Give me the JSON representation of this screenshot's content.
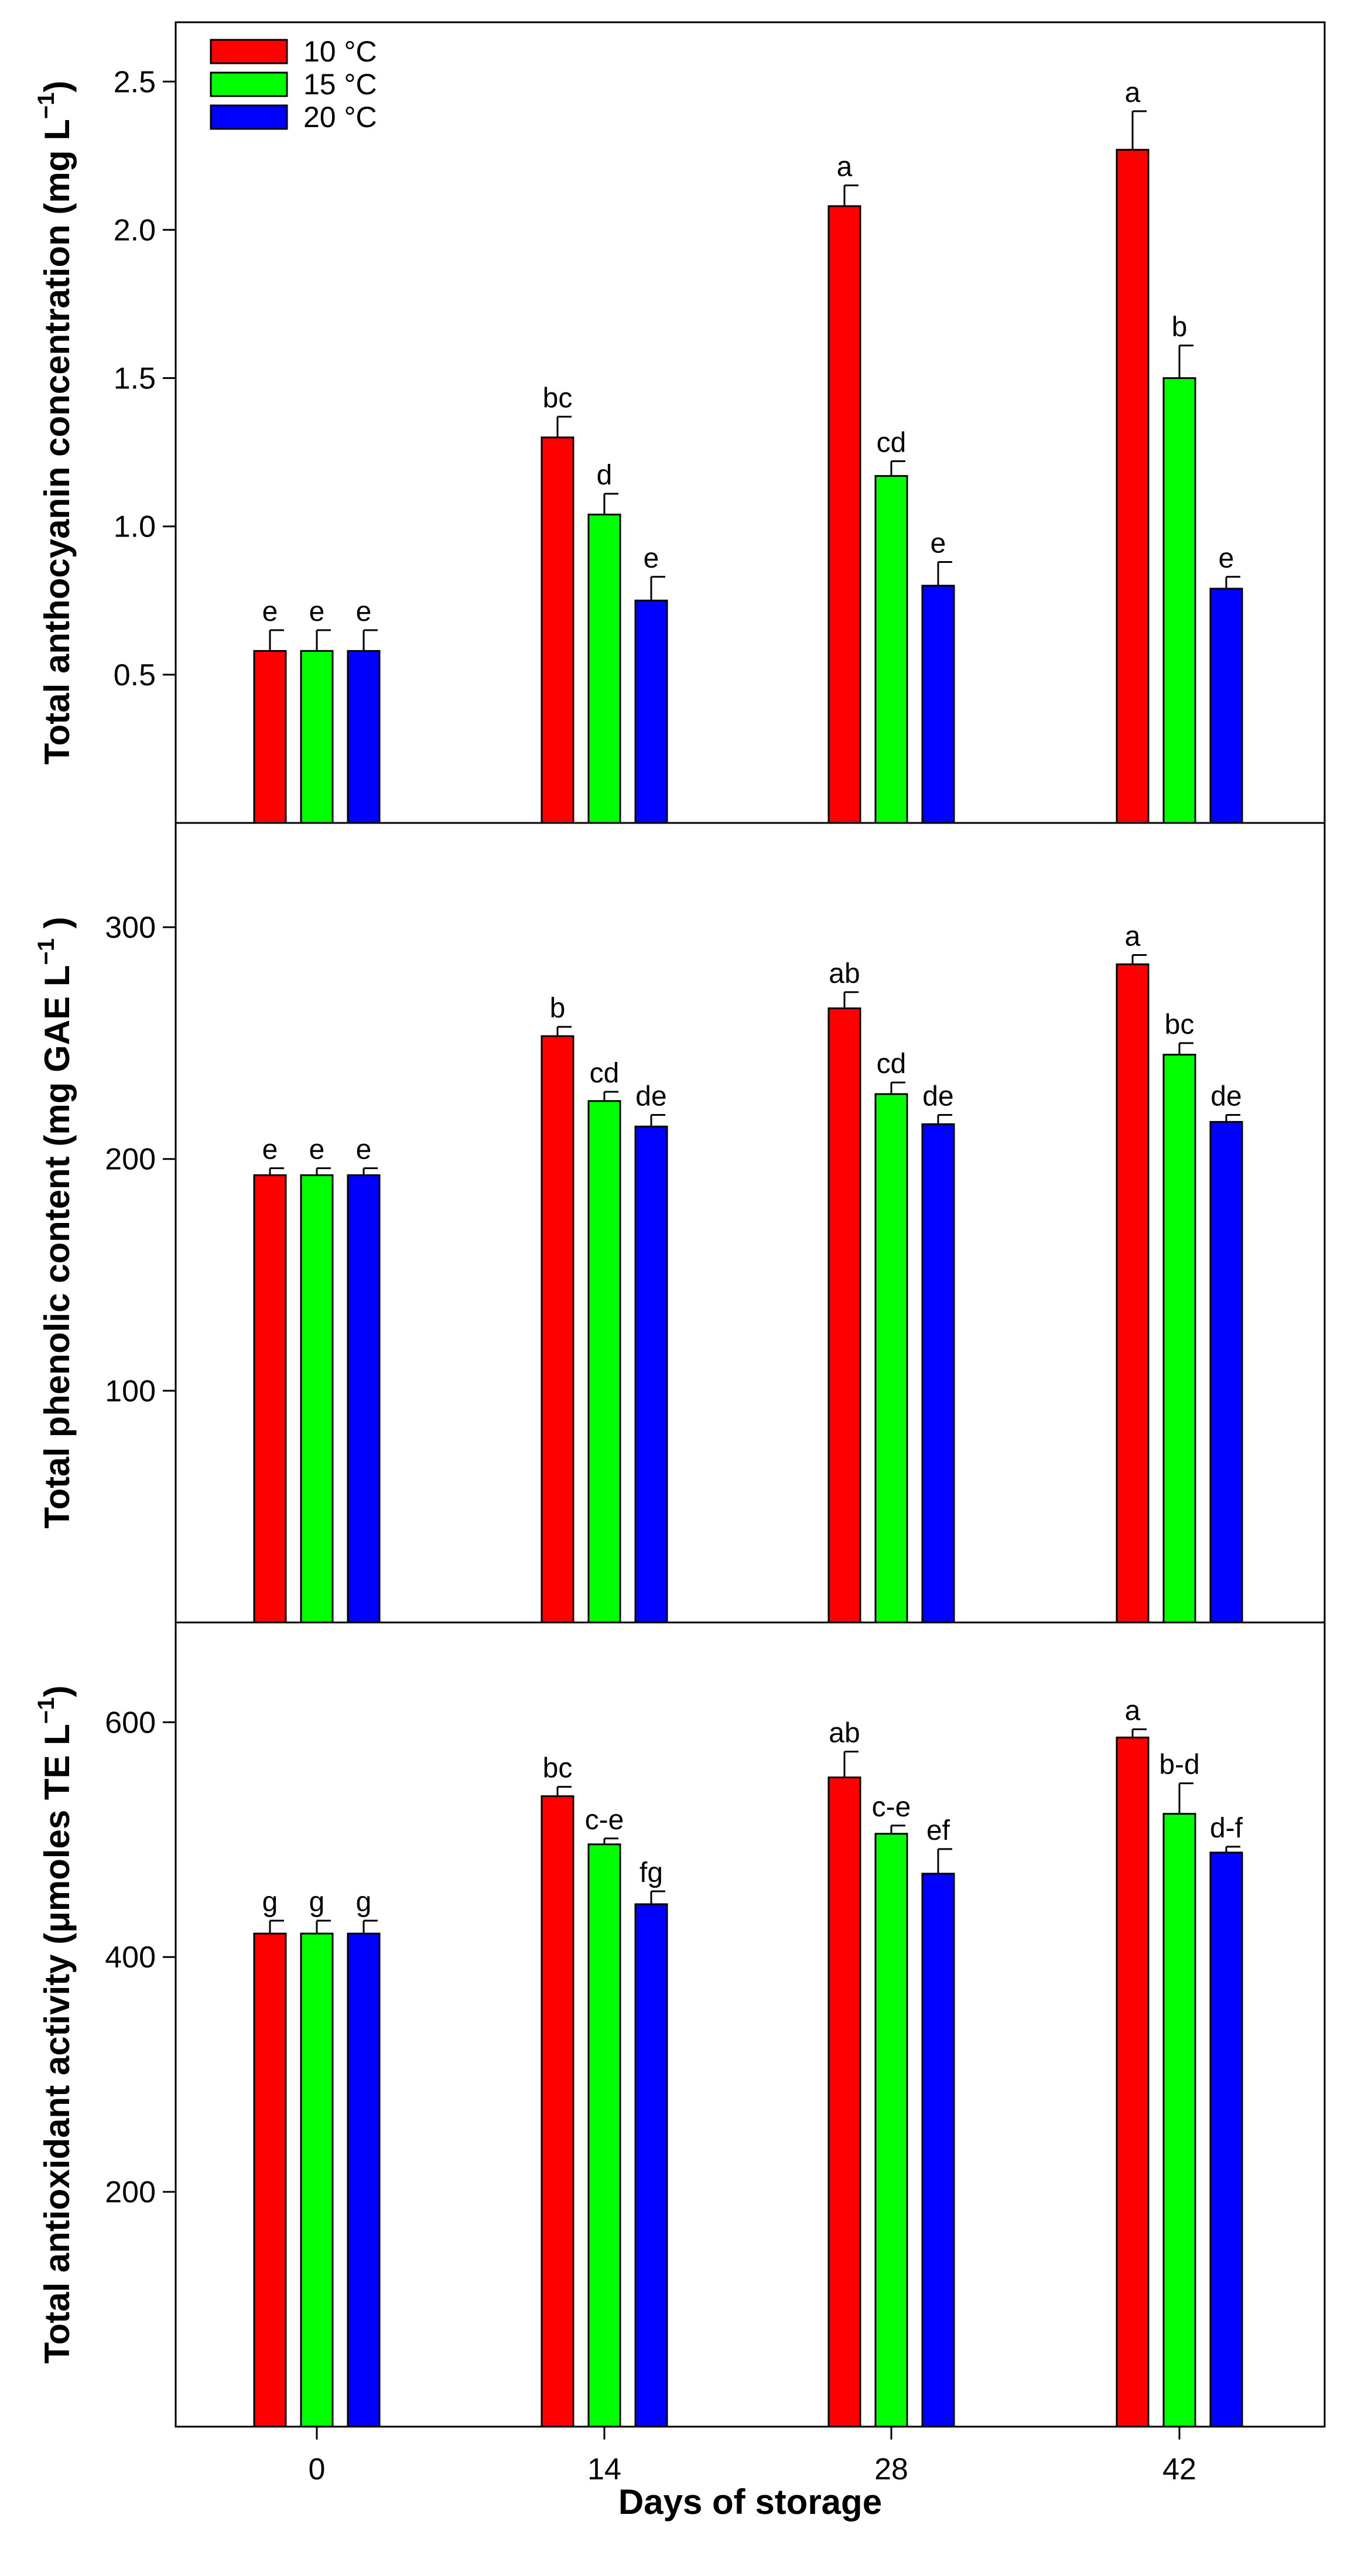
{
  "chart_data": [
    {
      "type": "bar",
      "ylabel": "Total anthocyanin concentration (mg L",
      "ylabel_sup": "−1",
      "ylabel_end": ")",
      "ylim": [
        0,
        2.7
      ],
      "yticks": [
        0.5,
        1.0,
        1.5,
        2.0,
        2.5
      ],
      "ytick_labels": [
        "0.5",
        "1.0",
        "1.5",
        "2.0",
        "2.5"
      ],
      "categories": [
        "0",
        "14",
        "28",
        "42"
      ],
      "series": [
        {
          "name": "10 °C",
          "values": [
            0.58,
            1.3,
            2.08,
            2.27
          ],
          "errors": [
            0.07,
            0.07,
            0.07,
            0.13
          ],
          "labels": [
            "e",
            "bc",
            "a",
            "a"
          ]
        },
        {
          "name": "15 °C",
          "values": [
            0.58,
            1.04,
            1.17,
            1.5
          ],
          "errors": [
            0.07,
            0.07,
            0.05,
            0.11
          ],
          "labels": [
            "e",
            "d",
            "cd",
            "b"
          ]
        },
        {
          "name": "20 °C",
          "values": [
            0.58,
            0.75,
            0.8,
            0.79
          ],
          "errors": [
            0.07,
            0.08,
            0.08,
            0.04
          ],
          "labels": [
            "e",
            "e",
            "e",
            "e"
          ]
        }
      ]
    },
    {
      "type": "bar",
      "ylabel": "Total phenolic content (mg GAE L",
      "ylabel_sup": "−1",
      "ylabel_end": " )",
      "ylim": [
        0,
        345
      ],
      "yticks": [
        100,
        200,
        300
      ],
      "ytick_labels": [
        "100",
        "200",
        "300"
      ],
      "categories": [
        "0",
        "14",
        "28",
        "42"
      ],
      "series": [
        {
          "name": "10 °C",
          "values": [
            193,
            253,
            265,
            284
          ],
          "errors": [
            3,
            4,
            7,
            4
          ],
          "labels": [
            "e",
            "b",
            "ab",
            "a"
          ]
        },
        {
          "name": "15 °C",
          "values": [
            193,
            225,
            228,
            245
          ],
          "errors": [
            3,
            4,
            5,
            5
          ],
          "labels": [
            "e",
            "cd",
            "cd",
            "bc"
          ]
        },
        {
          "name": "20 °C",
          "values": [
            193,
            214,
            215,
            216
          ],
          "errors": [
            3,
            5,
            4,
            3
          ],
          "labels": [
            "e",
            "de",
            "de",
            "de"
          ]
        }
      ]
    },
    {
      "type": "bar",
      "ylabel": "Total antioxidant activity (μmoles TE L",
      "ylabel_sup": "−1",
      "ylabel_end": ")",
      "ylim": [
        0,
        685
      ],
      "yticks": [
        200,
        400,
        600
      ],
      "ytick_labels": [
        "200",
        "400",
        "600"
      ],
      "categories": [
        "0",
        "14",
        "28",
        "42"
      ],
      "series": [
        {
          "name": "10 °C",
          "values": [
            420,
            537,
            553,
            587
          ],
          "errors": [
            11,
            8,
            22,
            7
          ],
          "labels": [
            "g",
            "bc",
            "ab",
            "a"
          ]
        },
        {
          "name": "15 °C",
          "values": [
            420,
            496,
            505,
            522
          ],
          "errors": [
            11,
            5,
            7,
            26
          ],
          "labels": [
            "g",
            "c-e",
            "c-e",
            "b-d"
          ]
        },
        {
          "name": "20 °C",
          "values": [
            420,
            445,
            471,
            489
          ],
          "errors": [
            11,
            11,
            21,
            5
          ],
          "labels": [
            "g",
            "fg",
            "ef",
            "d-f"
          ]
        }
      ]
    }
  ],
  "legend": [
    {
      "label": "10 °C",
      "color": "#ff0000"
    },
    {
      "label": "15 °C",
      "color": "#00ff00"
    },
    {
      "label": "20 °C",
      "color": "#0000ff"
    }
  ],
  "xlabel": "Days of storage"
}
